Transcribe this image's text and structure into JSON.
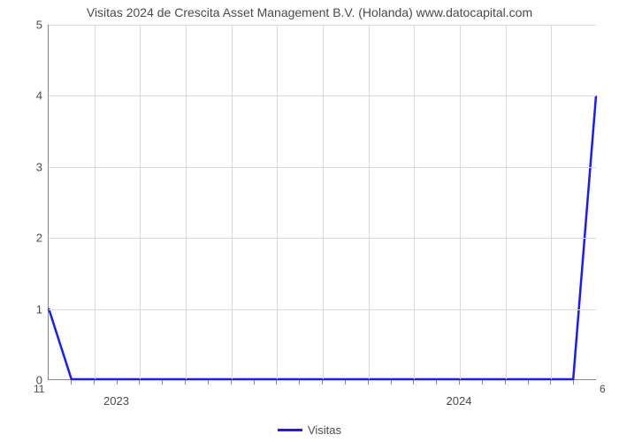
{
  "chart": {
    "type": "line",
    "title": "Visitas 2024 de Crescita Asset Management B.V. (Holanda) www.datocapital.com",
    "title_fontsize": 14,
    "title_color": "#4a4a4a",
    "background_color": "#ffffff",
    "grid_color": "#d9d9d9",
    "axis_color": "#888888",
    "line_color": "#1a1aff",
    "line_width": 2.5,
    "y": {
      "lim": [
        0,
        5
      ],
      "ticks": [
        0,
        1,
        2,
        3,
        4,
        5
      ],
      "tick_fontsize": 13,
      "tick_color": "#4a4a4a"
    },
    "x": {
      "n_months": 24,
      "group_labels": [
        {
          "label": "2023",
          "center_month_index": 3
        },
        {
          "label": "2024",
          "center_month_index": 18
        }
      ],
      "corner_left_label": "11",
      "corner_right_label": "6",
      "minor_tick_every": 1,
      "label_fontsize": 13
    },
    "series": [
      {
        "name": "Visitas",
        "points": [
          {
            "x": 0,
            "y": 1
          },
          {
            "x": 1,
            "y": 0
          },
          {
            "x": 23,
            "y": 0
          },
          {
            "x": 24,
            "y": 4
          }
        ]
      }
    ],
    "legend": {
      "label": "Visitas",
      "swatch_color": "#1a1aff",
      "fontsize": 13
    }
  }
}
